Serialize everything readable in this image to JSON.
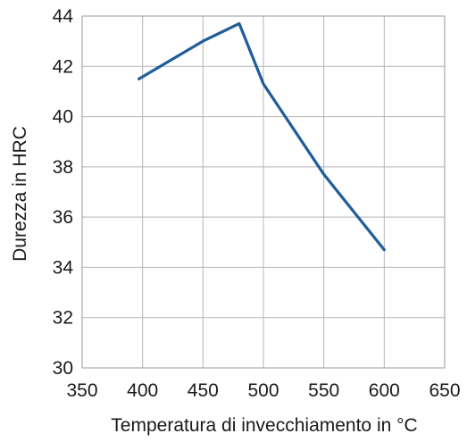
{
  "chart_data": {
    "type": "line",
    "xlabel": "Temperatura di invecchiamento in °C",
    "ylabel": "Durezza in HRC",
    "xlim": [
      350,
      650
    ],
    "ylim": [
      30,
      44
    ],
    "x_ticks": [
      "350",
      "400",
      "450",
      "500",
      "550",
      "600",
      "650"
    ],
    "y_ticks": [
      "30",
      "32",
      "34",
      "36",
      "38",
      "40",
      "42",
      "44"
    ],
    "grid": true,
    "series": [
      {
        "color": "#1f5d9b",
        "x": [
          397,
          450,
          480,
          500,
          550,
          600
        ],
        "y": [
          41.5,
          43.0,
          43.7,
          41.3,
          37.7,
          34.7
        ]
      }
    ]
  }
}
